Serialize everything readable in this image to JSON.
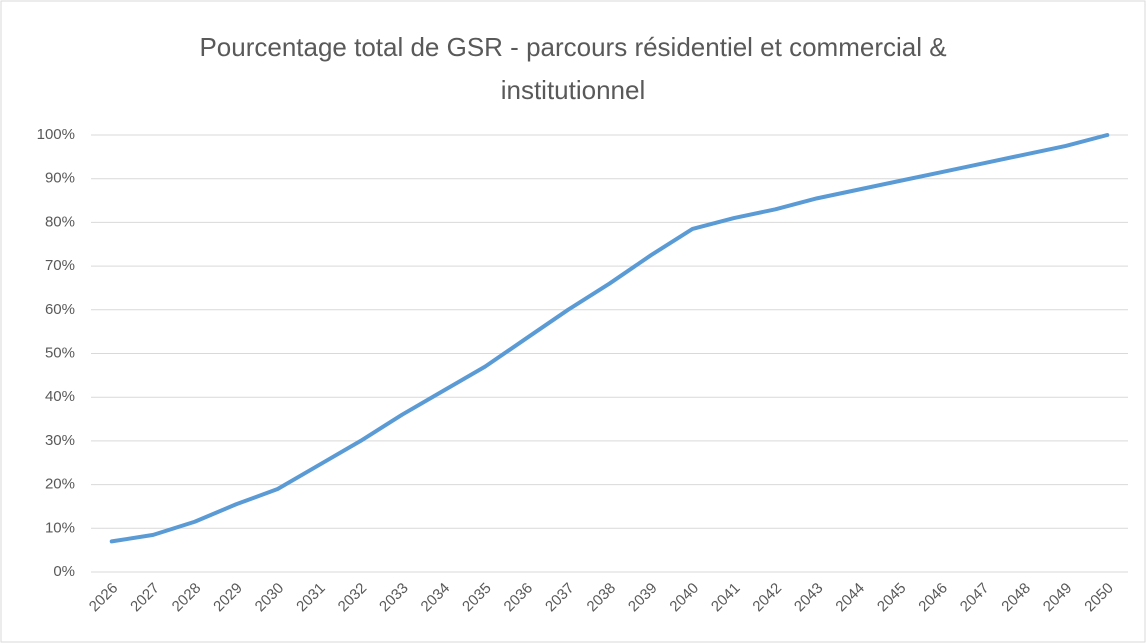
{
  "chart_data": {
    "type": "line",
    "title": "Pourcentage total de GSR - parcours résidentiel et commercial & institutionnel",
    "categories": [
      "2026",
      "2027",
      "2028",
      "2029",
      "2030",
      "2031",
      "2032",
      "2033",
      "2034",
      "2035",
      "2036",
      "2037",
      "2038",
      "2039",
      "2040",
      "2041",
      "2042",
      "2043",
      "2044",
      "2045",
      "2046",
      "2047",
      "2048",
      "2049",
      "2050"
    ],
    "values": [
      7,
      8.5,
      11.5,
      15.5,
      19,
      24.5,
      30,
      36,
      41.5,
      47,
      53.5,
      60,
      66,
      72.5,
      78.5,
      81,
      83,
      85.5,
      87.5,
      89.5,
      91.5,
      93.5,
      95.5,
      97.5,
      100
    ],
    "color": "#5b9bd5",
    "ylim": [
      0,
      100
    ],
    "yticks": [
      {
        "value": 0,
        "label": "0%"
      },
      {
        "value": 10,
        "label": "10%"
      },
      {
        "value": 20,
        "label": "20%"
      },
      {
        "value": 30,
        "label": "30%"
      },
      {
        "value": 40,
        "label": "40%"
      },
      {
        "value": 50,
        "label": "50%"
      },
      {
        "value": 60,
        "label": "60%"
      },
      {
        "value": 70,
        "label": "70%"
      },
      {
        "value": 80,
        "label": "80%"
      },
      {
        "value": 90,
        "label": "90%"
      },
      {
        "value": 100,
        "label": "100%"
      }
    ],
    "grid": true
  }
}
